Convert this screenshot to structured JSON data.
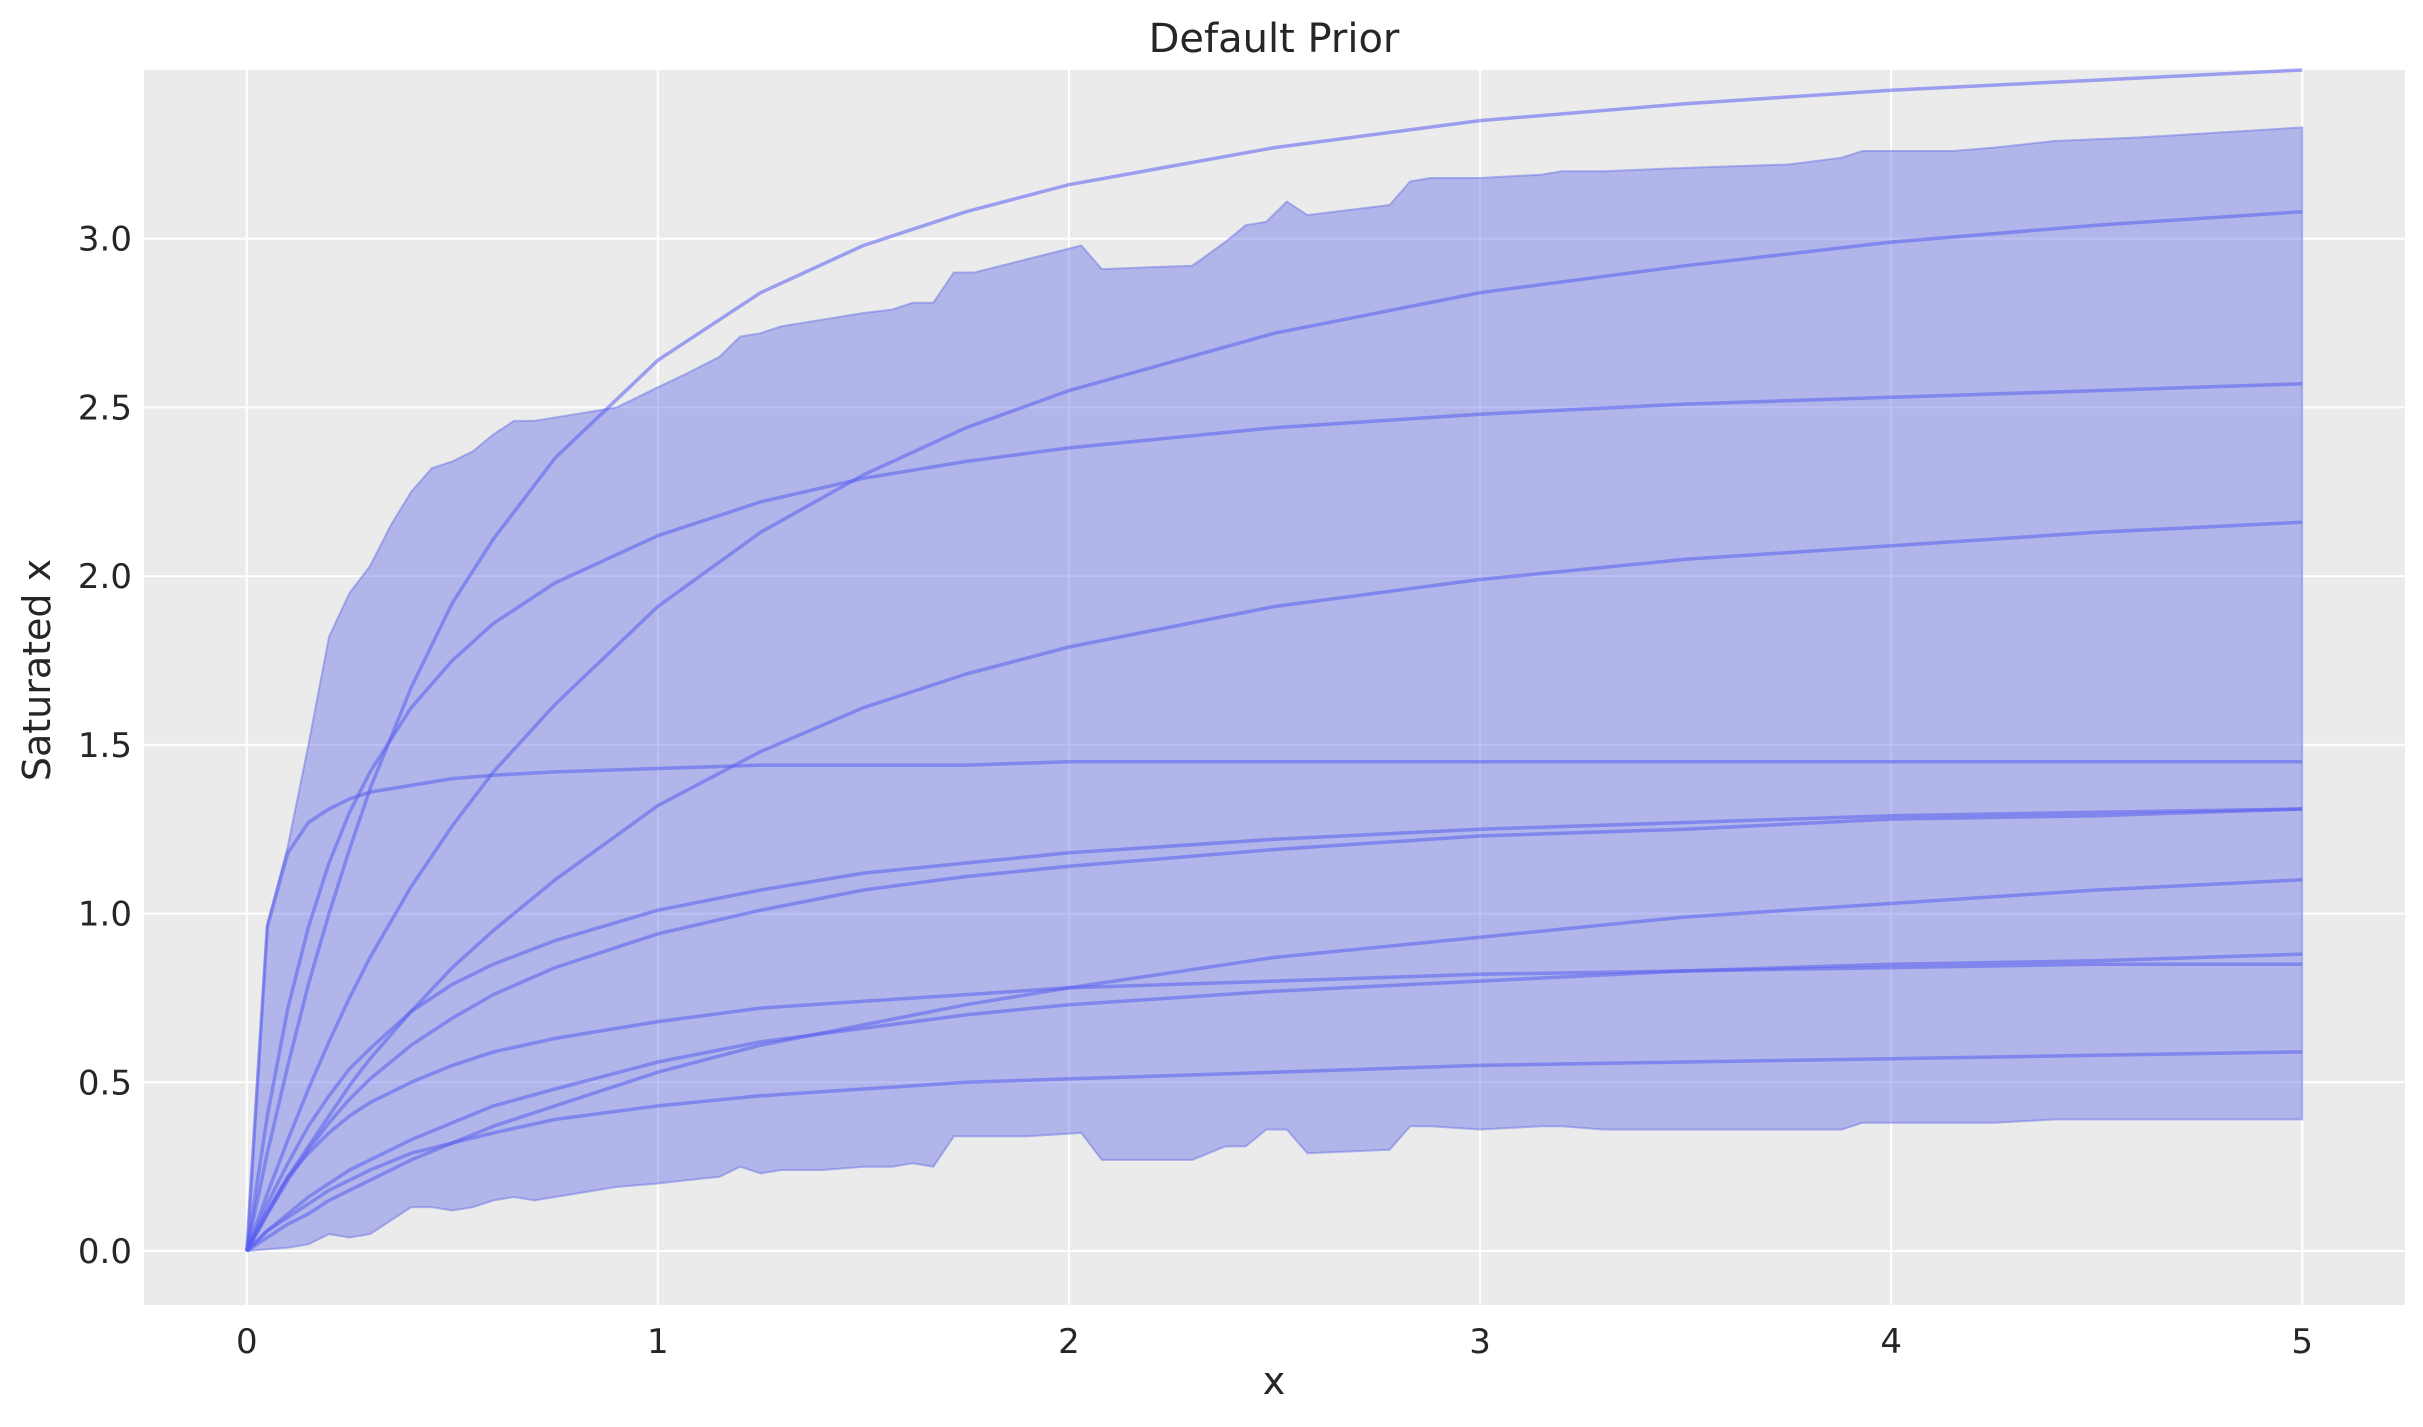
{
  "chart_data": {
    "type": "line",
    "title": "Default Prior",
    "xlabel": "x",
    "ylabel": "Saturated x",
    "xlim": [
      -0.25,
      5.25
    ],
    "ylim": [
      -0.16,
      3.5
    ],
    "xticks": [
      0,
      1,
      2,
      3,
      4,
      5
    ],
    "xtick_labels": [
      "0",
      "1",
      "2",
      "3",
      "4",
      "5"
    ],
    "yticks": [
      0.0,
      0.5,
      1.0,
      1.5,
      2.0,
      2.5,
      3.0
    ],
    "ytick_labels": [
      "0.0",
      "0.5",
      "1.0",
      "1.5",
      "2.0",
      "2.5",
      "3.0"
    ],
    "grid": true,
    "colors": {
      "background": "#ebebeb",
      "band": "#6b74e6",
      "line": "#5a5ff0",
      "grid": "#ffffff"
    },
    "band": {
      "x": [
        0,
        0.05,
        0.1,
        0.15,
        0.2,
        0.25,
        0.3,
        0.35,
        0.4,
        0.45,
        0.5,
        0.55,
        0.6,
        0.65,
        0.7,
        0.8,
        0.9,
        1.0,
        1.07,
        1.15,
        1.2,
        1.25,
        1.3,
        1.4,
        1.5,
        1.57,
        1.62,
        1.67,
        1.72,
        1.77,
        1.9,
        2.03,
        2.08,
        2.3,
        2.38,
        2.43,
        2.48,
        2.53,
        2.58,
        2.78,
        2.83,
        2.88,
        3.0,
        3.15,
        3.2,
        3.3,
        3.5,
        3.75,
        3.88,
        3.93,
        4.15,
        4.25,
        4.4,
        4.6,
        5.0
      ],
      "upper": [
        0,
        0.97,
        1.2,
        1.5,
        1.82,
        1.95,
        2.03,
        2.15,
        2.25,
        2.32,
        2.34,
        2.37,
        2.42,
        2.46,
        2.46,
        2.48,
        2.5,
        2.56,
        2.6,
        2.65,
        2.71,
        2.72,
        2.74,
        2.76,
        2.78,
        2.79,
        2.81,
        2.81,
        2.9,
        2.9,
        2.94,
        2.98,
        2.91,
        2.92,
        2.99,
        3.04,
        3.05,
        3.11,
        3.07,
        3.1,
        3.17,
        3.18,
        3.18,
        3.19,
        3.2,
        3.2,
        3.21,
        3.22,
        3.24,
        3.26,
        3.26,
        3.27,
        3.29,
        3.3,
        3.33
      ],
      "lower": [
        0,
        0.005,
        0.01,
        0.02,
        0.05,
        0.04,
        0.05,
        0.09,
        0.13,
        0.13,
        0.12,
        0.13,
        0.15,
        0.16,
        0.15,
        0.17,
        0.19,
        0.2,
        0.21,
        0.22,
        0.25,
        0.23,
        0.24,
        0.24,
        0.25,
        0.25,
        0.26,
        0.25,
        0.34,
        0.34,
        0.34,
        0.35,
        0.27,
        0.27,
        0.31,
        0.31,
        0.36,
        0.36,
        0.29,
        0.3,
        0.37,
        0.37,
        0.36,
        0.37,
        0.37,
        0.36,
        0.36,
        0.36,
        0.36,
        0.38,
        0.38,
        0.38,
        0.39,
        0.39,
        0.39
      ]
    },
    "x": [
      0,
      0.05,
      0.1,
      0.15,
      0.2,
      0.25,
      0.3,
      0.4,
      0.5,
      0.6,
      0.75,
      1.0,
      1.25,
      1.5,
      1.75,
      2.0,
      2.5,
      3.0,
      3.5,
      4.0,
      4.5,
      5.0
    ],
    "series": [
      {
        "values": [
          0,
          0.29,
          0.55,
          0.79,
          1.0,
          1.19,
          1.37,
          1.67,
          1.92,
          2.11,
          2.35,
          2.64,
          2.84,
          2.98,
          3.08,
          3.16,
          3.27,
          3.35,
          3.4,
          3.44,
          3.47,
          3.5
        ]
      },
      {
        "values": [
          0,
          0.17,
          0.33,
          0.48,
          0.62,
          0.75,
          0.87,
          1.08,
          1.26,
          1.42,
          1.62,
          1.91,
          2.13,
          2.3,
          2.44,
          2.55,
          2.72,
          2.84,
          2.92,
          2.99,
          3.04,
          3.08
        ]
      },
      {
        "values": [
          0,
          0.4,
          0.72,
          0.96,
          1.15,
          1.3,
          1.42,
          1.61,
          1.75,
          1.86,
          1.98,
          2.12,
          2.22,
          2.29,
          2.34,
          2.38,
          2.44,
          2.48,
          2.51,
          2.53,
          2.55,
          2.57
        ]
      },
      {
        "values": [
          0,
          0.11,
          0.22,
          0.31,
          0.4,
          0.49,
          0.57,
          0.71,
          0.84,
          0.95,
          1.1,
          1.32,
          1.48,
          1.61,
          1.71,
          1.79,
          1.91,
          1.99,
          2.05,
          2.09,
          2.13,
          2.16
        ]
      },
      {
        "values": [
          0,
          0.96,
          1.18,
          1.27,
          1.31,
          1.34,
          1.36,
          1.38,
          1.4,
          1.41,
          1.42,
          1.43,
          1.44,
          1.44,
          1.44,
          1.45,
          1.45,
          1.45,
          1.45,
          1.45,
          1.45,
          1.45
        ]
      },
      {
        "values": [
          0,
          0.14,
          0.26,
          0.37,
          0.46,
          0.54,
          0.6,
          0.71,
          0.79,
          0.85,
          0.92,
          1.01,
          1.07,
          1.12,
          1.15,
          1.18,
          1.22,
          1.25,
          1.27,
          1.29,
          1.3,
          1.31
        ]
      },
      {
        "values": [
          0,
          0.11,
          0.21,
          0.3,
          0.38,
          0.45,
          0.51,
          0.61,
          0.69,
          0.76,
          0.84,
          0.94,
          1.01,
          1.07,
          1.11,
          1.14,
          1.19,
          1.23,
          1.25,
          1.28,
          1.29,
          1.31
        ]
      },
      {
        "values": [
          0,
          0.04,
          0.08,
          0.11,
          0.15,
          0.18,
          0.21,
          0.27,
          0.32,
          0.37,
          0.43,
          0.53,
          0.61,
          0.67,
          0.73,
          0.78,
          0.87,
          0.93,
          0.99,
          1.03,
          1.07,
          1.1
        ]
      },
      {
        "values": [
          0,
          0.12,
          0.22,
          0.29,
          0.35,
          0.4,
          0.44,
          0.5,
          0.55,
          0.59,
          0.63,
          0.68,
          0.72,
          0.74,
          0.76,
          0.78,
          0.8,
          0.82,
          0.83,
          0.84,
          0.85,
          0.85
        ]
      },
      {
        "values": [
          0,
          0.06,
          0.11,
          0.16,
          0.2,
          0.24,
          0.27,
          0.33,
          0.38,
          0.43,
          0.48,
          0.56,
          0.62,
          0.66,
          0.7,
          0.73,
          0.77,
          0.8,
          0.83,
          0.85,
          0.86,
          0.88
        ]
      },
      {
        "values": [
          0,
          0.06,
          0.1,
          0.14,
          0.18,
          0.21,
          0.24,
          0.29,
          0.32,
          0.35,
          0.39,
          0.43,
          0.46,
          0.48,
          0.5,
          0.51,
          0.53,
          0.55,
          0.56,
          0.57,
          0.58,
          0.59
        ]
      }
    ]
  }
}
